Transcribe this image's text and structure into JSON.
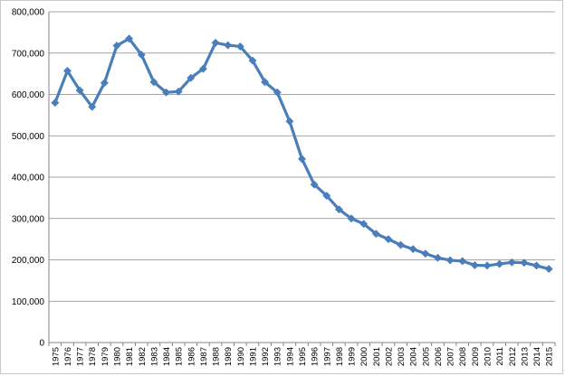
{
  "chart_data": {
    "type": "line",
    "title": "",
    "xlabel": "",
    "ylabel": "",
    "ylim": [
      0,
      800000
    ],
    "y_ticks": [
      0,
      100000,
      200000,
      300000,
      400000,
      500000,
      600000,
      700000,
      800000
    ],
    "y_tick_labels": [
      "0",
      "100,000",
      "200,000",
      "300,000",
      "400,000",
      "500,000",
      "600,000",
      "700,000",
      "800,000"
    ],
    "grid": "horizontal",
    "legend": "none",
    "marker": "diamond",
    "series_color": "#4a7ebb",
    "categories": [
      "1975",
      "1976",
      "1977",
      "1978",
      "1979",
      "1980",
      "1981",
      "1982",
      "1983",
      "1984",
      "1985",
      "1986",
      "1987",
      "1988",
      "1989",
      "1990",
      "1991",
      "1992",
      "1993",
      "1994",
      "1995",
      "1996",
      "1997",
      "1998",
      "1999",
      "2000",
      "2001",
      "2002",
      "2003",
      "2004",
      "2005",
      "2006",
      "2007",
      "2008",
      "2009",
      "2010",
      "2011",
      "2012",
      "2013",
      "2014",
      "2015"
    ],
    "series": [
      {
        "values": [
          580000,
          657000,
          610000,
          570000,
          628000,
          718000,
          735000,
          696000,
          630000,
          605000,
          607000,
          640000,
          662000,
          725000,
          719000,
          716000,
          682000,
          630000,
          605000,
          535000,
          444000,
          382000,
          355000,
          322000,
          300000,
          287000,
          263000,
          250000,
          236000,
          226000,
          215000,
          205000,
          199000,
          197000,
          187000,
          186000,
          190000,
          194000,
          193000,
          186000,
          178000
        ]
      }
    ]
  }
}
